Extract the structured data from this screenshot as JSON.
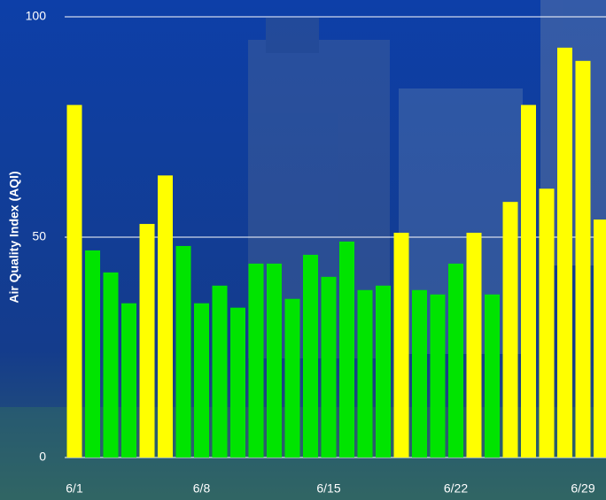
{
  "chart_data": {
    "type": "bar",
    "y_label": "Air Quality Index (AQI)",
    "categories": [
      "6/1",
      null,
      null,
      null,
      null,
      null,
      null,
      "6/8",
      null,
      null,
      null,
      null,
      null,
      null,
      "6/15",
      null,
      null,
      null,
      null,
      null,
      null,
      "6/22",
      null,
      null,
      null,
      null,
      null,
      null,
      "6/29",
      null
    ],
    "values": [
      80,
      47,
      42,
      35,
      53,
      64,
      48,
      35,
      39,
      34,
      44,
      44,
      36,
      46,
      41,
      49,
      38,
      39,
      51,
      38,
      37,
      44,
      51,
      37,
      58,
      80,
      61,
      93,
      90,
      54
    ],
    "colors": [
      "#ffff00",
      "#00e400",
      "#00e400",
      "#00e400",
      "#ffff00",
      "#ffff00",
      "#00e400",
      "#00e400",
      "#00e400",
      "#00e400",
      "#00e400",
      "#00e400",
      "#00e400",
      "#00e400",
      "#00e400",
      "#00e400",
      "#00e400",
      "#00e400",
      "#ffff00",
      "#00e400",
      "#00e400",
      "#00e400",
      "#ffff00",
      "#00e400",
      "#ffff00",
      "#ffff00",
      "#ffff00",
      "#ffff00",
      "#ffff00",
      "#ffff00"
    ],
    "ylim": [
      0,
      100
    ],
    "yticks": [
      0,
      50,
      100
    ],
    "grid": true
  }
}
